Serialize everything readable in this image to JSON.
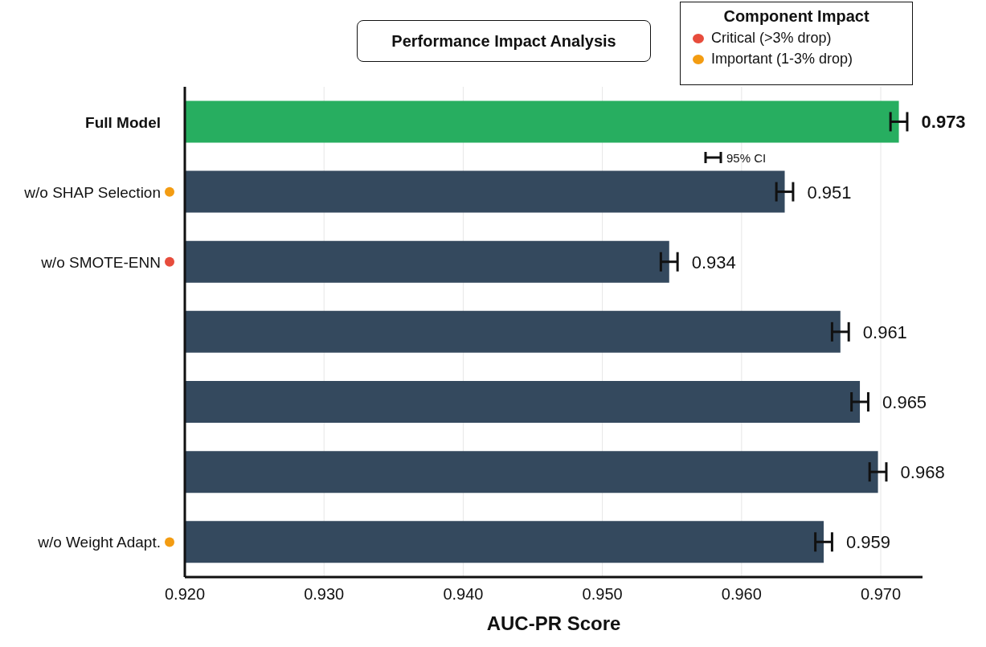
{
  "chart_data": {
    "type": "bar",
    "orientation": "horizontal",
    "title": "Performance Impact Analysis",
    "xlabel": "AUC-PR Score",
    "legend_title": "Component Impact",
    "categories": [
      "Full Model",
      "w/o SHAP Selection",
      "w/o SMOTE-ENN",
      null,
      null,
      null,
      "w/o Weight Adapt."
    ],
    "values": [
      0.9713,
      0.9631,
      0.9548,
      0.9671,
      0.9685,
      0.9698,
      0.9659
    ],
    "errors": [
      0.0006,
      0.0006,
      0.0006,
      0.0006,
      0.0006,
      0.0006,
      0.0006
    ],
    "colors": [
      "#27ae60",
      "#34495e",
      "#34495e",
      "#34495e",
      "#34495e",
      "#34495e",
      "#34495e"
    ],
    "xlim": [
      0.92,
      0.973
    ],
    "xticks": [
      {
        "value": 0.92,
        "label": "0.920"
      },
      {
        "value": 0.93,
        "label": "0.930"
      },
      {
        "value": 0.94,
        "label": "0.940"
      },
      {
        "value": 0.95,
        "label": "0.950"
      },
      {
        "value": 0.96,
        "label": "0.960"
      },
      {
        "value": 0.97,
        "label": "0.970"
      }
    ],
    "grid": "x",
    "annotations": [
      "95% CI",
      "Critical (>3% drop)",
      "Important (1-3% drop)",
      "0.973",
      "0.951",
      "0.934",
      "0.961",
      "0.965",
      "0.968",
      "0.959"
    ]
  }
}
